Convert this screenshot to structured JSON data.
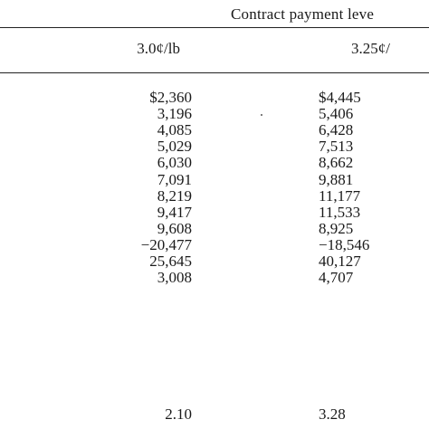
{
  "table": {
    "group_header": "Contract payment leve",
    "columns": [
      "3.0¢/lb",
      "3.25¢/"
    ],
    "rows": [
      [
        "$2,360",
        "$4,445"
      ],
      [
        "3,196",
        "5,406"
      ],
      [
        "4,085",
        "6,428"
      ],
      [
        "5,029",
        "7,513"
      ],
      [
        "6,030",
        "8,662"
      ],
      [
        "7,091",
        "9,881"
      ],
      [
        "8,219",
        "11,177"
      ],
      [
        "9,417",
        "11,533"
      ],
      [
        "9,608",
        "8,925"
      ],
      [
        "−20,477",
        "−18,546"
      ],
      [
        "25,645",
        "40,127"
      ],
      [
        "3,008",
        "4,707"
      ]
    ],
    "bottom_row": [
      "2.10",
      "3.28"
    ]
  }
}
